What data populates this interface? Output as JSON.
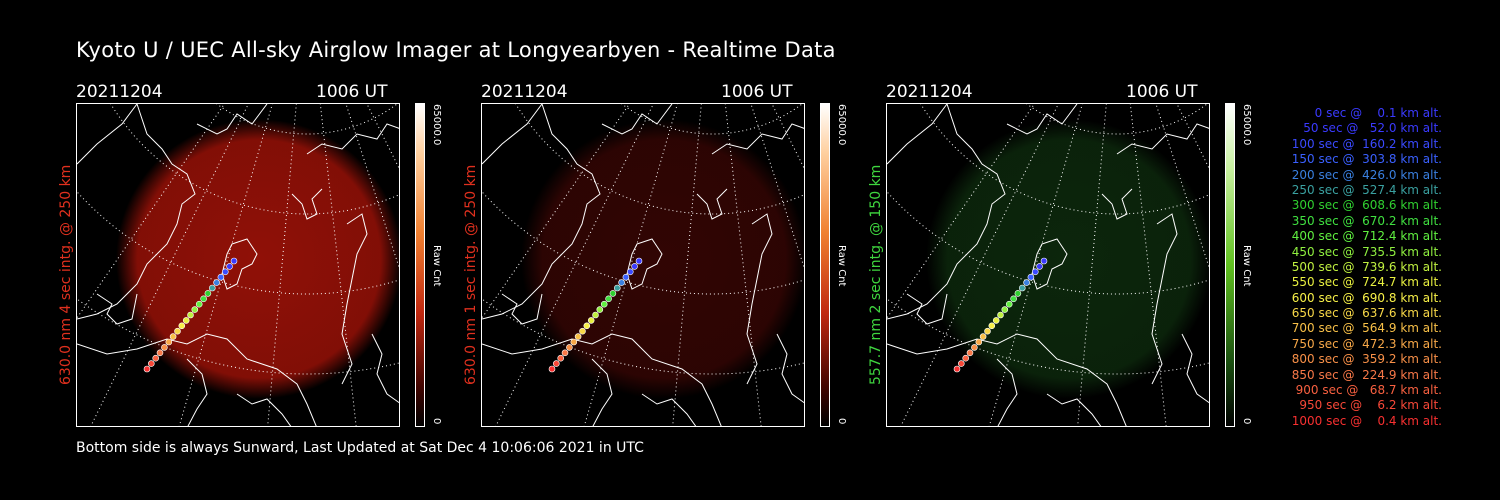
{
  "title": "Kyoto U / UEC All-sky Airglow Imager at Longyearbyen - Realtime Data",
  "panels": [
    {
      "date": "20211204",
      "time": "1006 UT",
      "side_label": "630.0 nm 4 sec intg. @ 250 km",
      "label_color": "#e0301e",
      "cbar_max": "65000.0",
      "cbar_unit": "Raw Cnt",
      "cbar_min": "0",
      "colormap": "red",
      "glow_color": "#a01208",
      "glow_strength": 0.9
    },
    {
      "date": "20211204",
      "time": "1006 UT",
      "side_label": "630.0 nm 1 sec intg. @ 250 km",
      "label_color": "#e0301e",
      "cbar_max": "65000.0",
      "cbar_unit": "Raw Cnt",
      "cbar_min": "0",
      "colormap": "red",
      "glow_color": "#3a0604",
      "glow_strength": 0.85
    },
    {
      "date": "20211204",
      "time": "1006 UT",
      "side_label": "557.7 nm 2 sec intg. @ 150 km",
      "label_color": "#3fd63f",
      "cbar_max": "65000.0",
      "cbar_unit": "Raw Cnt",
      "cbar_min": "0",
      "colormap": "green",
      "glow_color": "#0d2a0d",
      "glow_strength": 0.9
    }
  ],
  "footer": "Bottom side is always Sunward, Last Updated at Sat Dec  4 10:06:06 2021 in UTC",
  "legend": [
    {
      "text": "   0 sec @    0.1 km alt.",
      "color": "#3a3aff"
    },
    {
      "text": "  50 sec @   52.0 km alt.",
      "color": "#3a3aff"
    },
    {
      "text": " 100 sec @  160.2 km alt.",
      "color": "#3a4aff"
    },
    {
      "text": " 150 sec @  303.8 km alt.",
      "color": "#3a60ff"
    },
    {
      "text": " 200 sec @  426.0 km alt.",
      "color": "#3a80e0"
    },
    {
      "text": " 250 sec @  527.4 km alt.",
      "color": "#3aa0a0"
    },
    {
      "text": " 300 sec @  608.6 km alt.",
      "color": "#30d030"
    },
    {
      "text": " 350 sec @  670.2 km alt.",
      "color": "#40e040"
    },
    {
      "text": " 400 sec @  712.4 km alt.",
      "color": "#60f040"
    },
    {
      "text": " 450 sec @  735.5 km alt.",
      "color": "#90f040"
    },
    {
      "text": " 500 sec @  739.6 km alt.",
      "color": "#c0f040"
    },
    {
      "text": " 550 sec @  724.7 km alt.",
      "color": "#e8f040"
    },
    {
      "text": " 600 sec @  690.8 km alt.",
      "color": "#f8f048"
    },
    {
      "text": " 650 sec @  637.6 km alt.",
      "color": "#f8d848"
    },
    {
      "text": " 700 sec @  564.9 km alt.",
      "color": "#f8c048"
    },
    {
      "text": " 750 sec @  472.3 km alt.",
      "color": "#f8a848"
    },
    {
      "text": " 800 sec @  359.2 km alt.",
      "color": "#f89048"
    },
    {
      "text": " 850 sec @  224.9 km alt.",
      "color": "#f87848"
    },
    {
      "text": " 900 sec @   68.7 km alt.",
      "color": "#f86040"
    },
    {
      "text": " 950 sec @    6.2 km alt.",
      "color": "#f84838"
    },
    {
      "text": "1000 sec @    0.4 km alt.",
      "color": "#f83030"
    }
  ]
}
